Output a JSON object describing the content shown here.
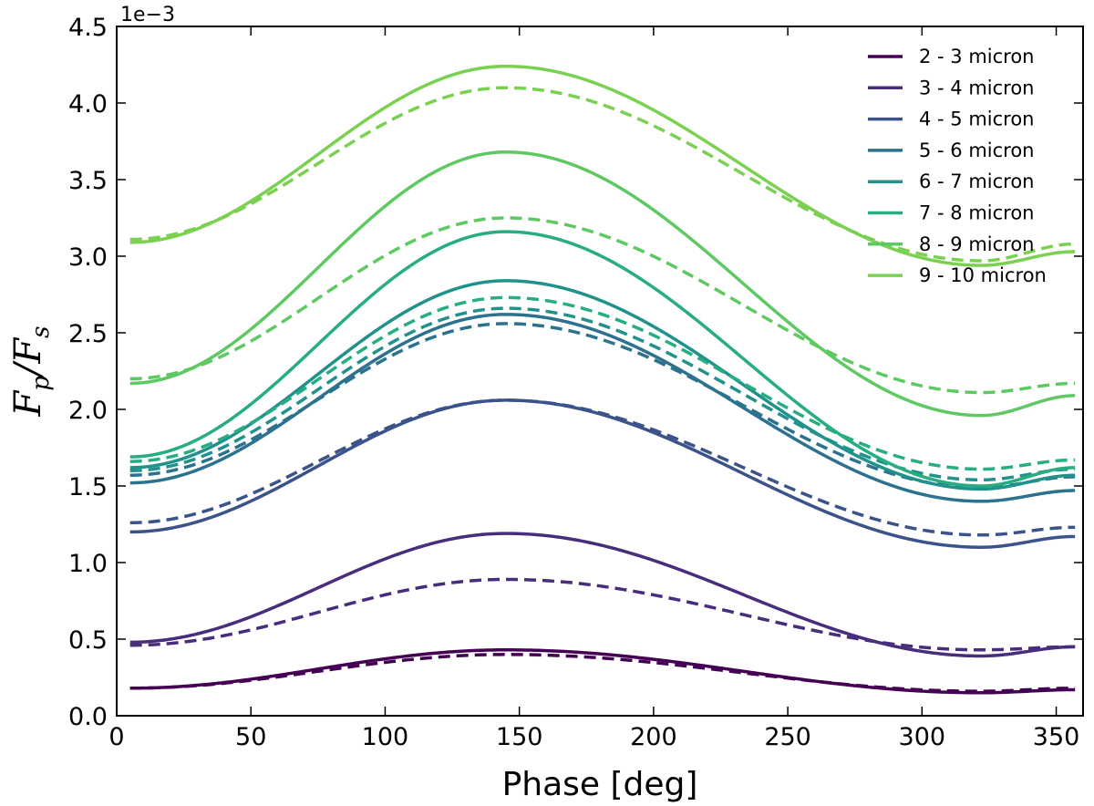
{
  "chart_data": {
    "type": "line",
    "xlabel": "Phase [deg]",
    "ylabel": {
      "main": "F",
      "sub_p": "p",
      "slash": "/",
      "main2": "F",
      "sub_s": "s"
    },
    "offset_text": "1e−3",
    "xlim": [
      0,
      360
    ],
    "ylim": [
      0.0,
      4.5
    ],
    "xticks": [
      0,
      50,
      100,
      150,
      200,
      250,
      300,
      350
    ],
    "xtick_labels": [
      "0",
      "50",
      "100",
      "150",
      "200",
      "250",
      "300",
      "350"
    ],
    "yticks": [
      0.0,
      0.5,
      1.0,
      1.5,
      2.0,
      2.5,
      3.0,
      3.5,
      4.0,
      4.5
    ],
    "ytick_labels": [
      "0.0",
      "0.5",
      "1.0",
      "1.5",
      "2.0",
      "2.5",
      "3.0",
      "3.5",
      "4.0",
      "4.5"
    ],
    "grid": false,
    "legend_position": "top-right",
    "x_range": [
      5,
      357
    ],
    "peak_phase": 145,
    "min_phase": 322,
    "series": [
      {
        "name": "2 - 3 micron",
        "color": "#440154",
        "solid": {
          "start": 0.18,
          "max": 0.43,
          "min": 0.15,
          "end": 0.17
        },
        "dashed": {
          "start": 0.18,
          "max": 0.4,
          "min": 0.16,
          "end": 0.18
        }
      },
      {
        "name": "3 - 4 micron",
        "color": "#472d7b",
        "solid": {
          "start": 0.48,
          "max": 1.19,
          "min": 0.39,
          "end": 0.45
        },
        "dashed": {
          "start": 0.46,
          "max": 0.89,
          "min": 0.43,
          "end": 0.45
        }
      },
      {
        "name": "4 - 5 micron",
        "color": "#3b528b",
        "solid": {
          "start": 1.2,
          "max": 2.06,
          "min": 1.1,
          "end": 1.17
        },
        "dashed": {
          "start": 1.26,
          "max": 2.06,
          "min": 1.18,
          "end": 1.23
        }
      },
      {
        "name": "5 - 6 micron",
        "color": "#2c728e",
        "solid": {
          "start": 1.52,
          "max": 2.62,
          "min": 1.4,
          "end": 1.47
        },
        "dashed": {
          "start": 1.57,
          "max": 2.56,
          "min": 1.49,
          "end": 1.56
        }
      },
      {
        "name": "6 - 7 micron",
        "color": "#21918c",
        "solid": {
          "start": 1.62,
          "max": 2.84,
          "min": 1.48,
          "end": 1.57
        },
        "dashed": {
          "start": 1.6,
          "max": 2.66,
          "min": 1.54,
          "end": 1.61
        }
      },
      {
        "name": "7 - 8 micron",
        "color": "#27ad81",
        "solid": {
          "start": 1.69,
          "max": 3.16,
          "min": 1.5,
          "end": 1.62
        },
        "dashed": {
          "start": 1.66,
          "max": 2.73,
          "min": 1.61,
          "end": 1.67
        }
      },
      {
        "name": "8 - 9 micron",
        "color": "#5ec962",
        "solid": {
          "start": 2.17,
          "max": 3.68,
          "min": 1.96,
          "end": 2.09
        },
        "dashed": {
          "start": 2.2,
          "max": 3.25,
          "min": 2.11,
          "end": 2.17
        }
      },
      {
        "name": "9 - 10 micron",
        "color": "#7ad151",
        "solid": {
          "start": 3.09,
          "max": 4.24,
          "min": 2.94,
          "end": 3.03
        },
        "dashed": {
          "start": 3.11,
          "max": 4.1,
          "min": 2.97,
          "end": 3.08
        }
      }
    ]
  }
}
